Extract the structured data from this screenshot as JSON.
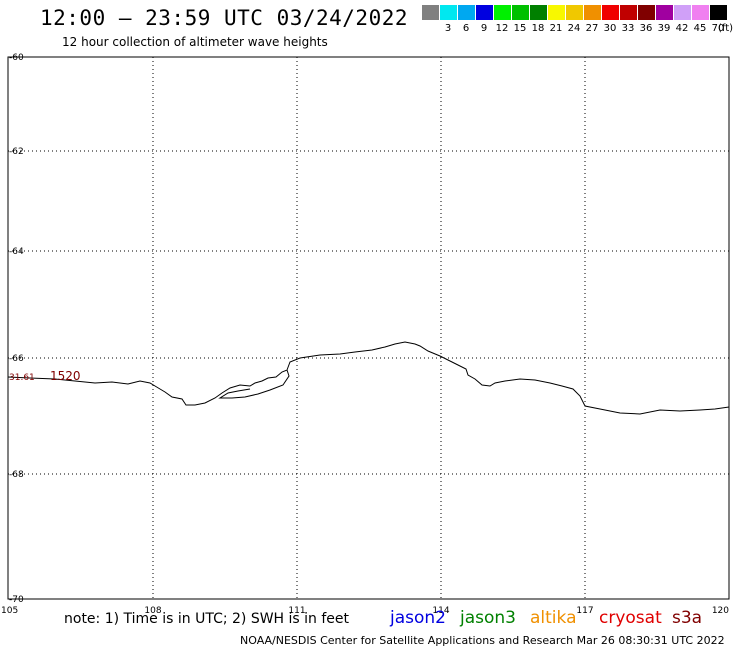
{
  "title": "12:00 – 23:59 UTC 03/24/2022",
  "subtitle": "12 hour collection of altimeter wave heights",
  "legend": {
    "swatches": [
      {
        "color": "#808080",
        "label": ""
      },
      {
        "color": "#00e8f0",
        "label": "3"
      },
      {
        "color": "#00a8f0",
        "label": "6"
      },
      {
        "color": "#0000e0",
        "label": "9"
      },
      {
        "color": "#00f000",
        "label": "12"
      },
      {
        "color": "#00c000",
        "label": "15"
      },
      {
        "color": "#008000",
        "label": "18"
      },
      {
        "color": "#f8f800",
        "label": "21"
      },
      {
        "color": "#f0c800",
        "label": "24"
      },
      {
        "color": "#f09000",
        "label": "27"
      },
      {
        "color": "#f00000",
        "label": "30"
      },
      {
        "color": "#c00000",
        "label": "33"
      },
      {
        "color": "#800000",
        "label": "36"
      },
      {
        "color": "#a000a0",
        "label": "39"
      },
      {
        "color": "#d0a0f8",
        "label": "42"
      },
      {
        "color": "#f080f0",
        "label": "45"
      },
      {
        "color": "#000000",
        "label": "70"
      }
    ],
    "unit": "(ft)"
  },
  "map": {
    "y_ticks": [
      "-60",
      "-62",
      "-64",
      "-66",
      "-68",
      "-70"
    ],
    "x_ticks": [
      "105",
      "108",
      "111",
      "114",
      "117",
      "120"
    ],
    "observation": {
      "swh": "31.61",
      "time": "1520",
      "color": "#800000"
    }
  },
  "note": "note: 1) Time is in UTC; 2) SWH is in feet",
  "satellites": [
    {
      "name": "jason2",
      "color": "#0000e0"
    },
    {
      "name": "jason3",
      "color": "#008000"
    },
    {
      "name": "altika",
      "color": "#f09000"
    },
    {
      "name": "cryosat",
      "color": "#e00000"
    },
    {
      "name": "s3a",
      "color": "#800000"
    }
  ],
  "credit": "NOAA/NESDIS Center for Satellite Applications and Research   Mar 26 08:30:31 UTC 2022"
}
